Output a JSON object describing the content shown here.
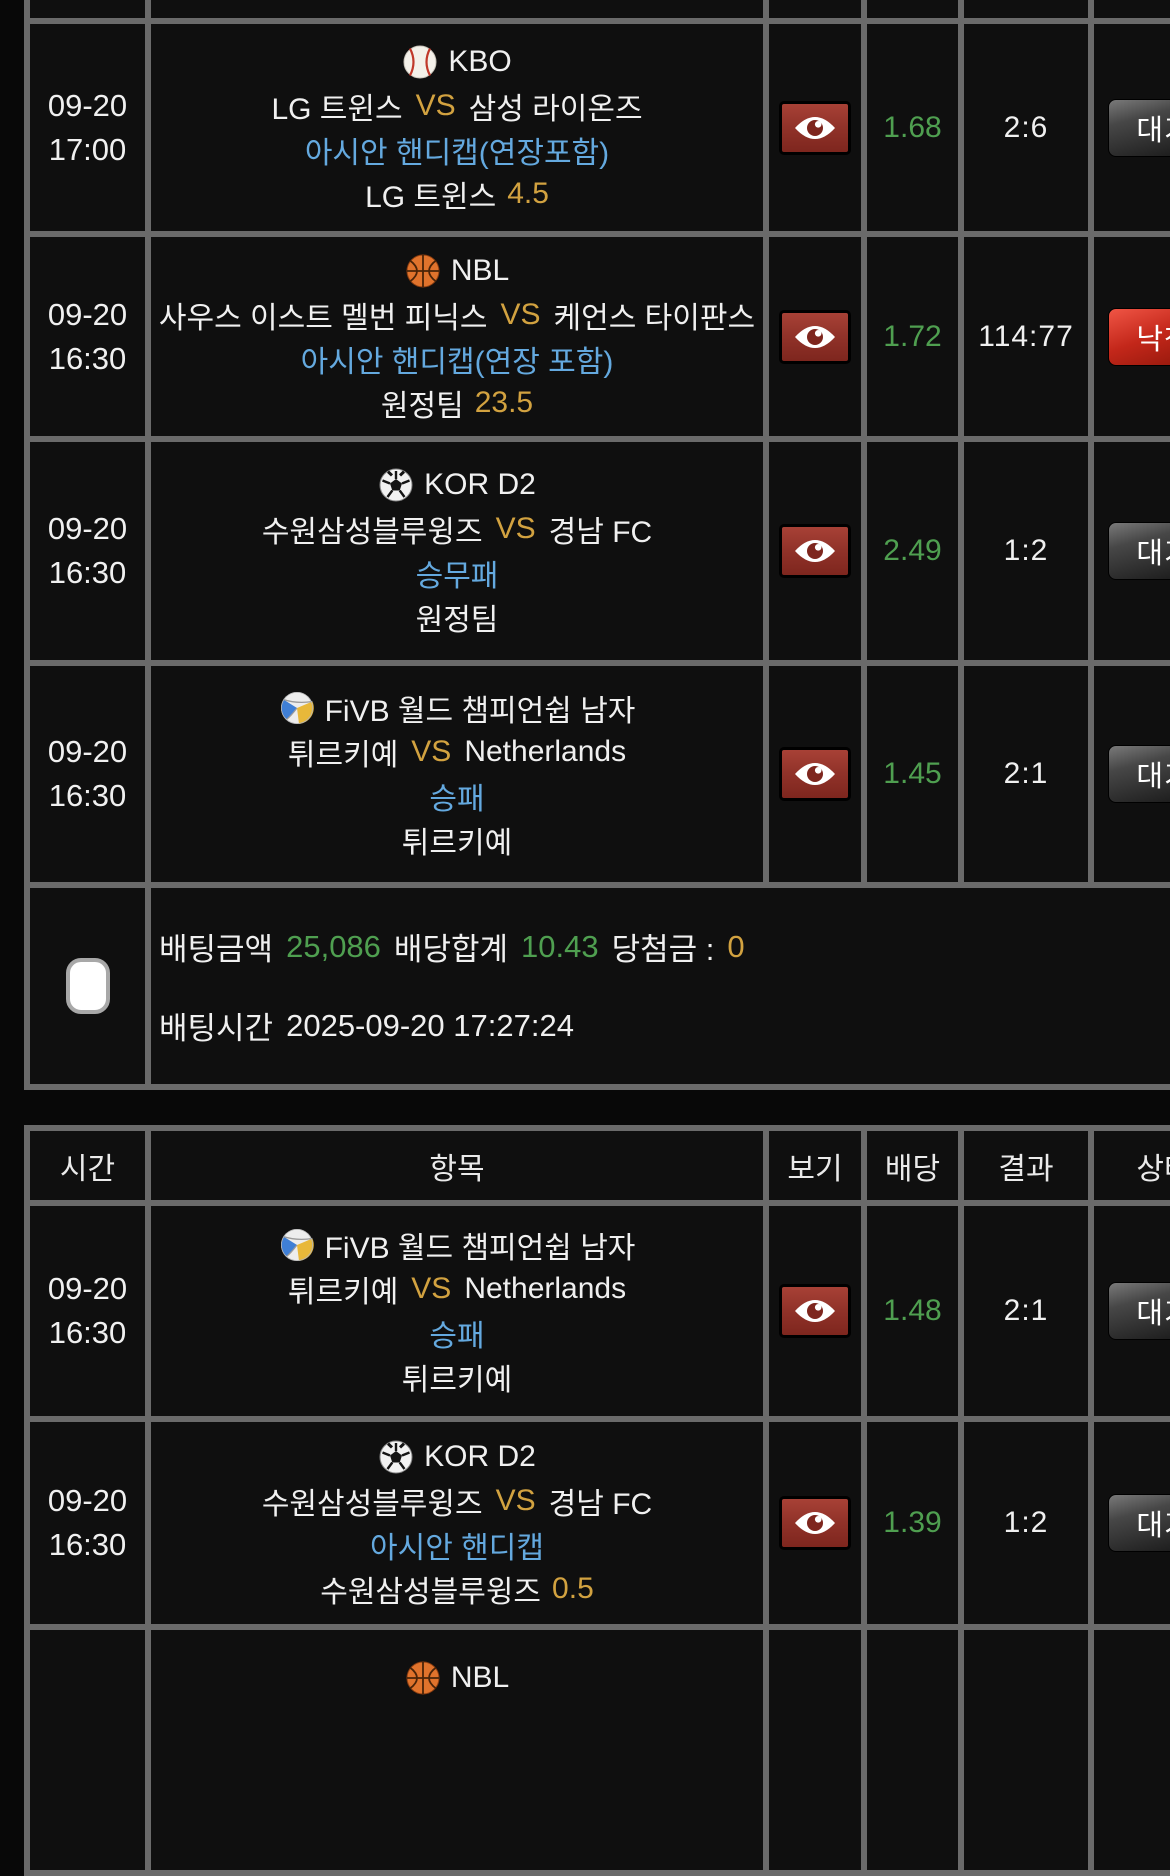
{
  "page": {
    "background": "#080808",
    "grid_border": "#6a6a6a",
    "cell_background": "#0f0f0f"
  },
  "colors": {
    "odds_green": "#4f9f50",
    "vs_and_handicap_gold": "#d2a240",
    "bet_type_blue": "#64a9df",
    "status_wait_gray": "#474747",
    "status_lost_red": "#c3271a",
    "view_button_red": "#92332a"
  },
  "tables": [
    {
      "rows": [
        {
          "date": "09-20",
          "time": "17:00",
          "sport": "baseball",
          "league": "KBO",
          "home": "LG 트윈스",
          "vs": "VS",
          "away": "삼성 라이온즈",
          "bet_type": "아시안 핸디캡(연장포함)",
          "pick": "LG 트윈스",
          "pick_value": "4.5",
          "odds": "1.68",
          "result": "2:6",
          "status": "대기",
          "status_kind": "wait"
        },
        {
          "date": "09-20",
          "time": "16:30",
          "sport": "basketball",
          "league": "NBL",
          "home": "사우스 이스트 멜번 피닉스",
          "vs": "VS",
          "away": "케언스 타이판스",
          "bet_type": "아시안 핸디캡(연장 포함)",
          "pick": "원정팀",
          "pick_value": "23.5",
          "odds": "1.72",
          "result": "114:77",
          "status": "낙첨",
          "status_kind": "lost"
        },
        {
          "date": "09-20",
          "time": "16:30",
          "sport": "soccer",
          "league": "KOR D2",
          "home": "수원삼성블루윙즈",
          "vs": "VS",
          "away": "경남 FC",
          "bet_type": "승무패",
          "pick": "원정팀",
          "pick_value": "",
          "odds": "2.49",
          "result": "1:2",
          "status": "대기",
          "status_kind": "wait"
        },
        {
          "date": "09-20",
          "time": "16:30",
          "sport": "volleyball",
          "league": "FiVB 월드 챔피언쉽 남자",
          "home": "튀르키예",
          "vs": "VS",
          "away": "Netherlands",
          "bet_type": "승패",
          "pick": "튀르키예",
          "pick_value": "",
          "odds": "1.45",
          "result": "2:1",
          "status": "대기",
          "status_kind": "wait"
        }
      ],
      "summary": {
        "amount_label": "배팅금액",
        "amount": "25,086",
        "total_label": "배당합계",
        "total": "10.43",
        "win_label": "당첨금 :",
        "win": "0",
        "bet_time_label": "배팅시간",
        "bet_time": "2025-09-20 17:27:24"
      }
    },
    {
      "header": {
        "time": "시간",
        "item": "항목",
        "view": "보기",
        "odds": "배당",
        "result": "결과",
        "status": "상태"
      },
      "rows": [
        {
          "date": "09-20",
          "time": "16:30",
          "sport": "volleyball",
          "league": "FiVB 월드 챔피언쉽 남자",
          "home": "튀르키예",
          "vs": "VS",
          "away": "Netherlands",
          "bet_type": "승패",
          "pick": "튀르키예",
          "pick_value": "",
          "odds": "1.48",
          "result": "2:1",
          "status": "대기",
          "status_kind": "wait"
        },
        {
          "date": "09-20",
          "time": "16:30",
          "sport": "soccer",
          "league": "KOR D2",
          "home": "수원삼성블루윙즈",
          "vs": "VS",
          "away": "경남 FC",
          "bet_type": "아시안 핸디캡",
          "pick": "수원삼성블루윙즈",
          "pick_value": "0.5",
          "odds": "1.39",
          "result": "1:2",
          "status": "대기",
          "status_kind": "wait"
        },
        {
          "date": "",
          "time": "",
          "sport": "basketball",
          "league": "NBL",
          "partial": true
        }
      ]
    }
  ]
}
